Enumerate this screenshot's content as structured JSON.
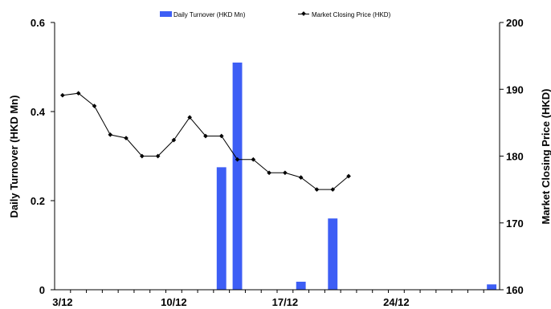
{
  "chart_data": {
    "type": "bar+line",
    "colors": {
      "bar": "#3d5ef5",
      "line": "#000000"
    },
    "legend": {
      "placement": "top-center",
      "bar_label": "Daily Turnover (HKD Mn)",
      "line_label": "Market Closing Price (HKD)"
    },
    "xlim": [
      0,
      28
    ],
    "x_ticks": [
      {
        "x": 0.5,
        "label": "3/12"
      },
      {
        "x": 7.5,
        "label": "10/12"
      },
      {
        "x": 14.5,
        "label": "17/12"
      },
      {
        "x": 21.5,
        "label": "24/12"
      }
    ],
    "y_left": {
      "label": "Daily Turnover (HKD Mn)",
      "range": [
        0,
        0.6
      ],
      "ticks": [
        {
          "v": 0,
          "label": "0"
        },
        {
          "v": 0.2,
          "label": "0.2"
        },
        {
          "v": 0.4,
          "label": "0.4"
        },
        {
          "v": 0.6,
          "label": "0.6"
        }
      ]
    },
    "y_right": {
      "label": "Market Closing Price (HKD)",
      "range": [
        160,
        200
      ],
      "ticks": [
        {
          "v": 160,
          "label": "160"
        },
        {
          "v": 170,
          "label": "170"
        },
        {
          "v": 180,
          "label": "180"
        },
        {
          "v": 190,
          "label": "190"
        },
        {
          "v": 200,
          "label": "200"
        }
      ]
    },
    "bar_series": {
      "name": "Daily Turnover (HKD Mn)",
      "points": [
        {
          "x": 10.5,
          "value": 0.275
        },
        {
          "x": 11.5,
          "value": 0.51
        },
        {
          "x": 15.5,
          "value": 0.018
        },
        {
          "x": 17.5,
          "value": 0.16
        },
        {
          "x": 27.5,
          "value": 0.012
        }
      ]
    },
    "line_series": {
      "name": "Market Closing Price (HKD)",
      "points": [
        {
          "x": 0.5,
          "value": 189.1
        },
        {
          "x": 1.5,
          "value": 189.4
        },
        {
          "x": 2.5,
          "value": 187.5
        },
        {
          "x": 3.5,
          "value": 183.2
        },
        {
          "x": 4.5,
          "value": 182.7
        },
        {
          "x": 5.5,
          "value": 180.0
        },
        {
          "x": 6.5,
          "value": 180.0
        },
        {
          "x": 7.5,
          "value": 182.4
        },
        {
          "x": 8.5,
          "value": 185.8
        },
        {
          "x": 9.5,
          "value": 183.0
        },
        {
          "x": 10.5,
          "value": 183.0
        },
        {
          "x": 11.5,
          "value": 179.5
        },
        {
          "x": 12.5,
          "value": 179.5
        },
        {
          "x": 13.5,
          "value": 177.5
        },
        {
          "x": 14.5,
          "value": 177.5
        },
        {
          "x": 15.5,
          "value": 176.8
        },
        {
          "x": 16.5,
          "value": 175.0
        },
        {
          "x": 17.5,
          "value": 175.0
        },
        {
          "x": 18.5,
          "value": 177.0
        }
      ]
    }
  }
}
